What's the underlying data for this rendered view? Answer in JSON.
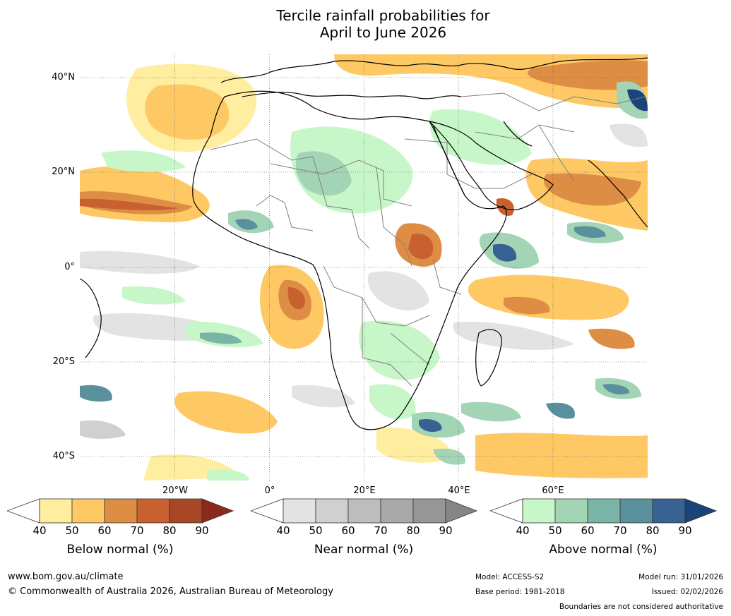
{
  "header": {
    "title_line1": "Tercile rainfall probabilities for",
    "title_line2": "April to June 2026"
  },
  "map": {
    "lat_labels": [
      "40°N",
      "20°N",
      "0°",
      "20°S",
      "40°S"
    ],
    "lon_labels": [
      "20°W",
      "0°",
      "20°E",
      "40°E",
      "60°E"
    ],
    "colors": {
      "ocean_background": "#ffffff",
      "coastline": "#000000",
      "border": "#808080",
      "gridline": "#555555"
    }
  },
  "legends": [
    {
      "name": "below",
      "caption": "Below normal (%)",
      "ticks": [
        "40",
        "50",
        "60",
        "70",
        "80",
        "90"
      ],
      "colors": [
        "#ffffff",
        "#ffeda0",
        "#fec965",
        "#de8e44",
        "#c8612f",
        "#a84726",
        "#8a2a1a"
      ]
    },
    {
      "name": "near",
      "caption": "Near normal (%)",
      "ticks": [
        "40",
        "50",
        "60",
        "70",
        "80",
        "90"
      ],
      "colors": [
        "#ffffff",
        "#e3e3e3",
        "#d0d0d0",
        "#bdbdbd",
        "#a9a9a9",
        "#969696",
        "#858585"
      ]
    },
    {
      "name": "above",
      "caption": "Above normal (%)",
      "ticks": [
        "40",
        "50",
        "60",
        "70",
        "80",
        "90"
      ],
      "colors": [
        "#ffffff",
        "#c7f7c8",
        "#a3d4b5",
        "#7ab4a7",
        "#5a8f9c",
        "#376291",
        "#1a4377"
      ]
    }
  ],
  "footer": {
    "website": "www.bom.gov.au/climate",
    "copyright": "© Commonwealth of Australia 2026, Australian Bureau of Meteorology",
    "model": "Model: ACCESS-S2",
    "base_period": "Base period: 1981-2018",
    "model_run": "Model run: 31/01/2026",
    "issued": "Issued: 02/02/2026",
    "disclaimer": "Boundaries are not considered authoritative"
  }
}
